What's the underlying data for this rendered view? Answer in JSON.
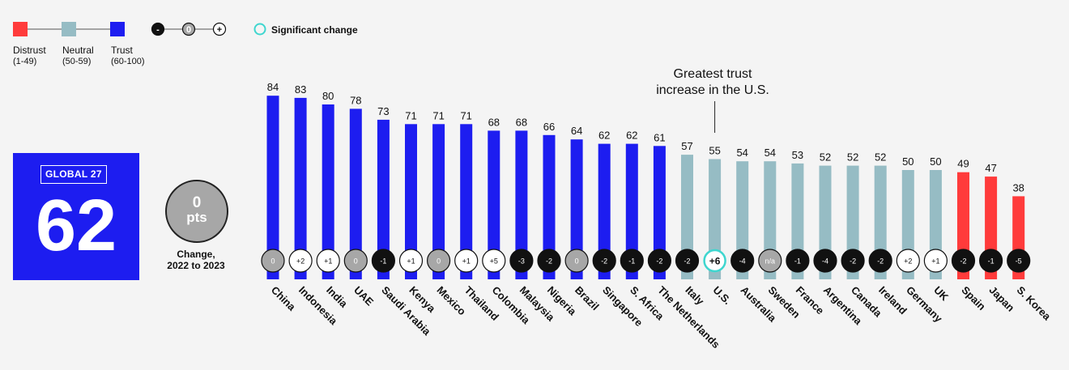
{
  "legend": {
    "items": [
      {
        "label": "Distrust",
        "range": "(1-49)",
        "color": "#ff3b3b"
      },
      {
        "label": "Neutral",
        "range": "(50-59)",
        "color": "#96bcc4"
      },
      {
        "label": "Trust",
        "range": "(60-100)",
        "color": "#1d1df0"
      }
    ],
    "change_scale": {
      "minus": "-",
      "zero": "0",
      "plus": "+"
    },
    "significant_label": "Significant change",
    "significant_color": "#3fd6cf"
  },
  "global": {
    "tag": "GLOBAL 27",
    "value": "62",
    "change_value": "0",
    "change_unit": "pts",
    "change_caption": "Change,\n2022 to 2023"
  },
  "annotation": "Greatest trust\nincrease in the U.S.",
  "chart_data": {
    "type": "bar",
    "ylim": [
      0,
      100
    ],
    "categories": [
      "China",
      "Indonesia",
      "India",
      "UAE",
      "Saudi Arabia",
      "Kenya",
      "Mexico",
      "Thailand",
      "Colombia",
      "Malaysia",
      "Nigeria",
      "Brazil",
      "Singapore",
      "S. Africa",
      "The Netherlands",
      "Italy",
      "U.S.",
      "Australia",
      "Sweden",
      "France",
      "Argentina",
      "Canada",
      "Ireland",
      "Germany",
      "UK",
      "Spain",
      "Japan",
      "S. Korea"
    ],
    "values": [
      84,
      83,
      80,
      78,
      73,
      71,
      71,
      71,
      68,
      68,
      66,
      64,
      62,
      62,
      61,
      57,
      55,
      54,
      54,
      53,
      52,
      52,
      52,
      50,
      50,
      49,
      47,
      38
    ],
    "changes": [
      "0",
      "+2",
      "+1",
      "0",
      "-1",
      "+1",
      "0",
      "+1",
      "+5",
      "-3",
      "-2",
      "0",
      "-2",
      "-1",
      "-2",
      "-2",
      "+6",
      "-4",
      "n/a",
      "-1",
      "-4",
      "-2",
      "-2",
      "+2",
      "+1",
      "-2",
      "-1",
      "-5"
    ],
    "significant_index": 16,
    "colors": {
      "trust": "#1d1df0",
      "neutral": "#96bcc4",
      "distrust": "#ff3b3b",
      "up": "#ffffff",
      "down": "#111111",
      "zero": "#a7a7a7"
    }
  }
}
